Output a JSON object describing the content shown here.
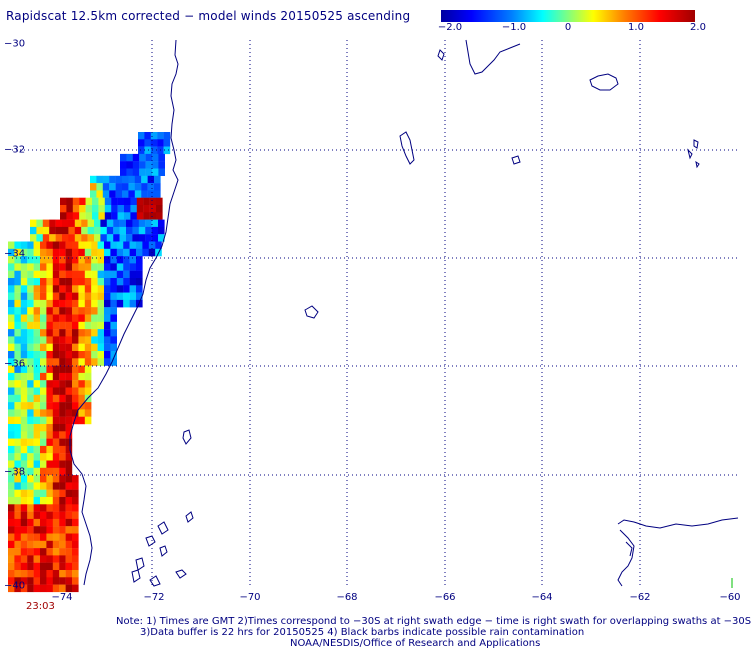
{
  "title": "Rapidscat 12.5km corrected − model winds 20150525 ascending",
  "colorbar": {
    "ticks": [
      "−2.0",
      "−1.0",
      "0",
      "1.0",
      "2.0"
    ],
    "range": [
      -2.0,
      2.0
    ],
    "colors": [
      "#0000a0",
      "#0000ff",
      "#00ffff",
      "#ffff00",
      "#ff0000",
      "#a00000"
    ]
  },
  "map": {
    "lon_labels": [
      "−74",
      "−72",
      "−70",
      "−68",
      "−66",
      "−64",
      "−62",
      "−60"
    ],
    "lat_labels": [
      "−30",
      "−32",
      "−34",
      "−36",
      "−38",
      "−40"
    ],
    "lon_range": [
      -74.9,
      -60
    ],
    "lat_range": [
      -40,
      -30
    ],
    "grid_color": "#000080",
    "coast_color": "#000080"
  },
  "swath_time": "23:03",
  "notes": {
    "line1": "Note: 1) Times are GMT 2)Times correspond to −30S at right swath edge − time is right swath for overlapping swaths at −30S",
    "line2": "3)Data buffer is 22 hrs for 20150525 4) Black barbs indicate possible rain contamination",
    "line3": "NOAA/NESDIS/Office of Research and Applications"
  }
}
